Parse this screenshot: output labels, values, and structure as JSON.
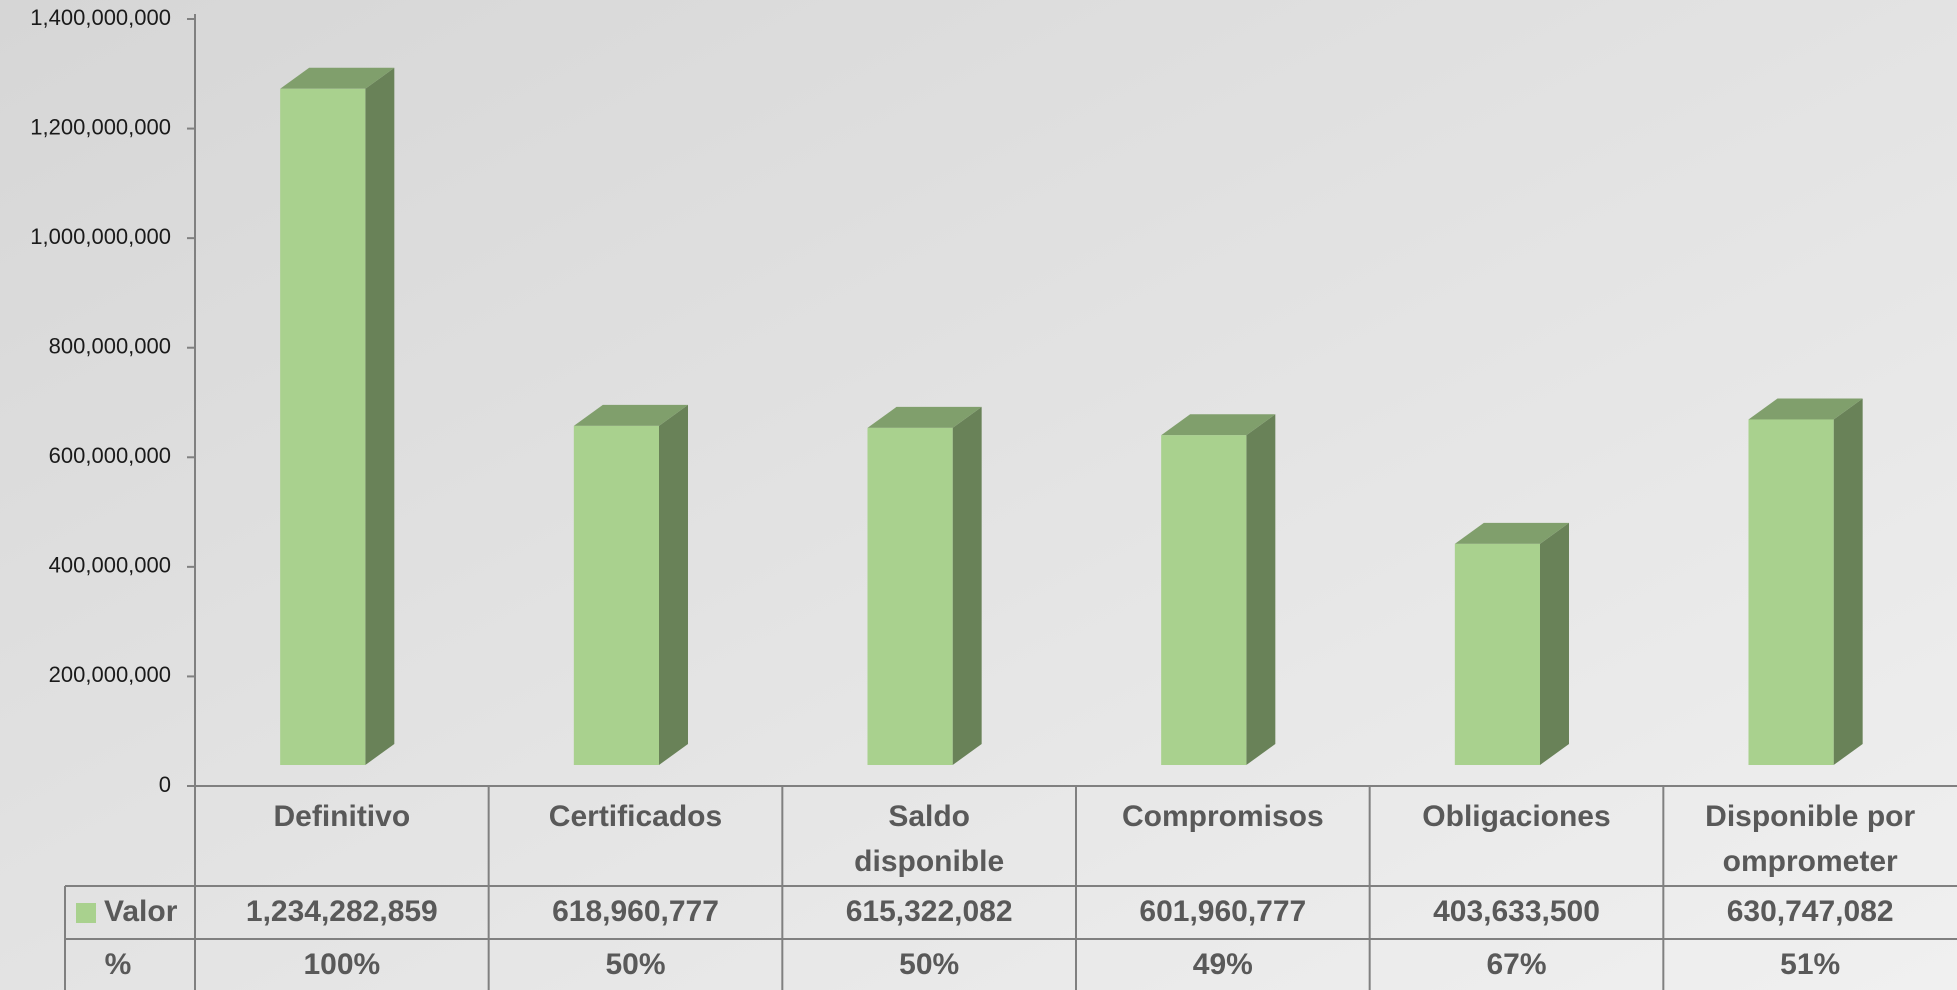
{
  "chart_data": {
    "type": "bar3d",
    "categories": [
      "Definitivo",
      "Certificados",
      "Saldo disponible",
      "Compromisos",
      "Obligaciones",
      "Disponible por omprometer"
    ],
    "series": [
      {
        "name": "Valor",
        "color": "#a9d18e",
        "values": [
          1234282859,
          618960777,
          615322082,
          601960777,
          403633500,
          630747082
        ],
        "value_labels": [
          "1,234,282,859",
          "618,960,777",
          "615,322,082",
          "601,960,777",
          "403,633,500",
          "630,747,082"
        ]
      }
    ],
    "percent_row": {
      "label": "%",
      "values": [
        100,
        50,
        50,
        49,
        67,
        51
      ],
      "value_labels": [
        "100%",
        "50%",
        "50%",
        "49%",
        "67%",
        "51%"
      ]
    },
    "ylim": [
      0,
      1400000000
    ],
    "yticks": [
      0,
      {
        "value": 200000000,
        "label": "200,000,000"
      },
      {
        "value": 400000000,
        "label": "400,000,000"
      },
      {
        "value": 600000000,
        "label": "600,000,000"
      },
      {
        "value": 800000000,
        "label": "800,000,000"
      },
      {
        "value": 1000000000,
        "label": "1,000,000,000"
      },
      {
        "value": 1200000000,
        "label": "1,200,000,000"
      },
      {
        "value": 1400000000,
        "label": "1,400,000,000"
      }
    ]
  }
}
